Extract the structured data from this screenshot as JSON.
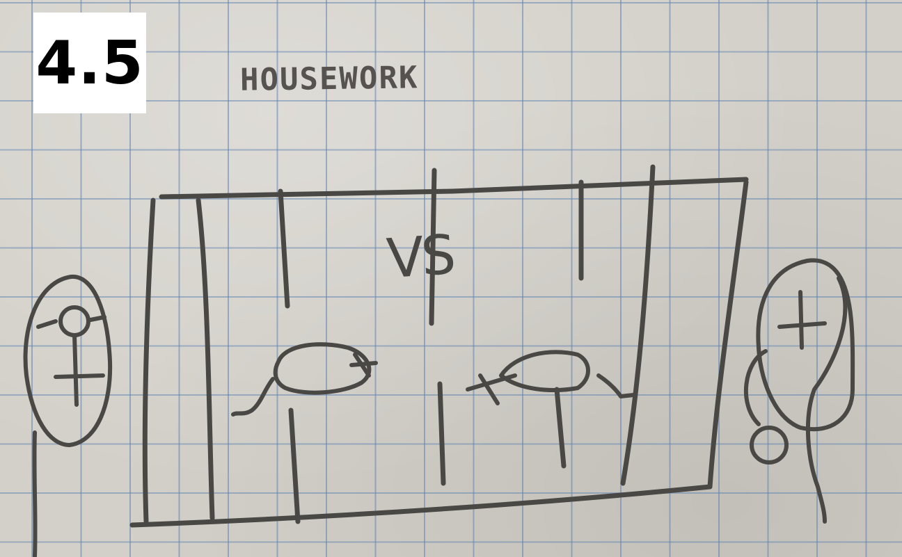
{
  "badge": {
    "label": "4.5"
  },
  "sketch": {
    "title": "HOUSEWORK",
    "center_label": "VS",
    "left_symbol": "female-symbol",
    "right_symbol": "male-symbol"
  },
  "colors": {
    "paper": "#d3d0c9",
    "grid": "#5f82af",
    "ink": "#4a4845",
    "badge_bg": "#ffffff",
    "badge_text": "#000000"
  }
}
